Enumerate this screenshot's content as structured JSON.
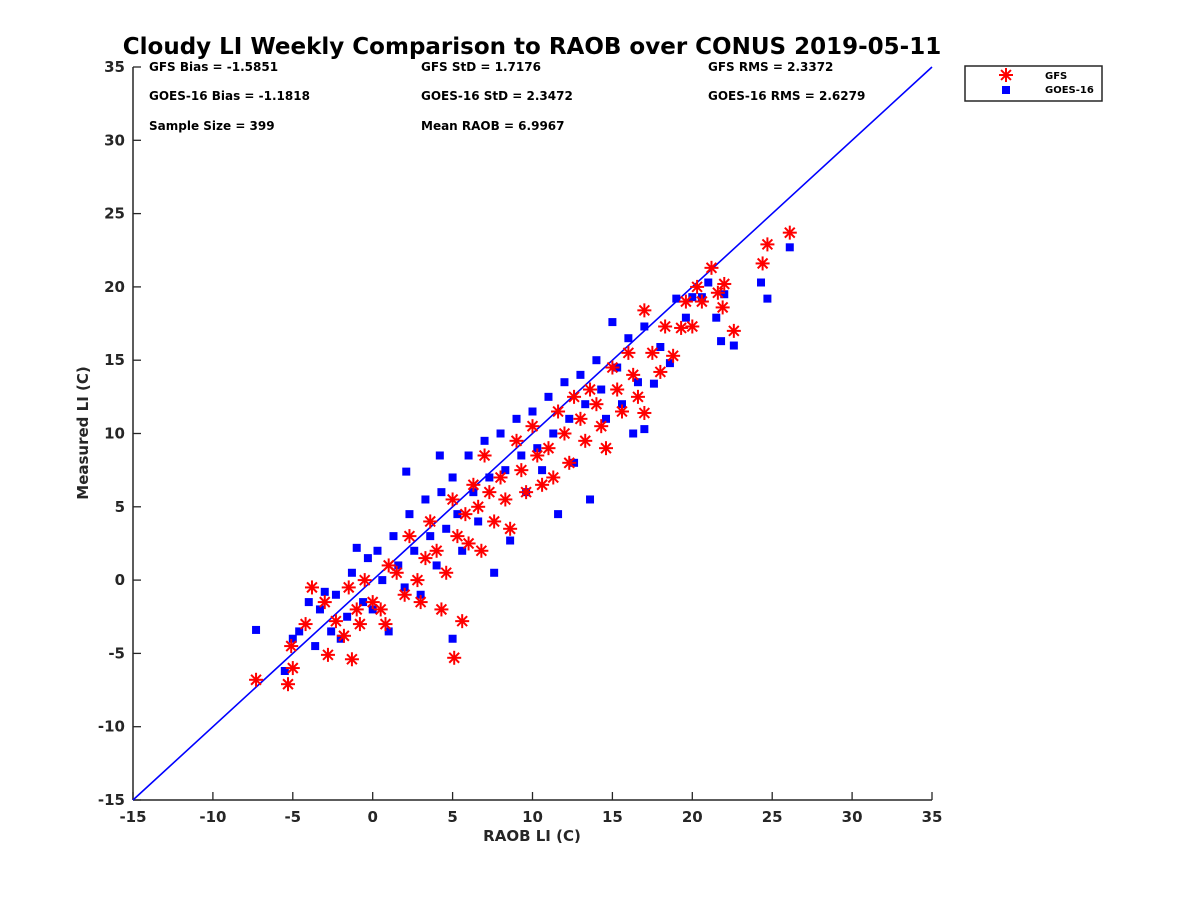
{
  "title": "Cloudy LI Weekly Comparison to RAOB over CONUS 2019-05-11",
  "stats": [
    [
      "GFS Bias = -1.5851",
      "GFS StD = 1.7176",
      "GFS RMS = 2.3372"
    ],
    [
      "GOES-16 Bias = -1.1818",
      "GOES-16 StD = 2.3472",
      "GOES-16 RMS = 2.6279"
    ],
    [
      "Sample Size = 399",
      "Mean RAOB = 6.9967",
      ""
    ]
  ],
  "colors": {
    "gfs": "#ff0000",
    "goes": "#0000ff",
    "line": "#0000ff",
    "axis": "#262626"
  },
  "chart_data": {
    "type": "scatter",
    "title": "Cloudy LI Weekly Comparison to RAOB over CONUS 2019-05-11",
    "xlabel": "RAOB LI (C)",
    "ylabel": "Measured LI (C)",
    "xlim": [
      -15,
      35
    ],
    "ylim": [
      -15,
      35
    ],
    "xticks": [
      -15,
      -10,
      -5,
      0,
      5,
      10,
      15,
      20,
      25,
      30,
      35
    ],
    "yticks": [
      -15,
      -10,
      -5,
      0,
      5,
      10,
      15,
      20,
      25,
      30,
      35
    ],
    "grid": false,
    "legend": "top-right outside",
    "reference_line": {
      "from": [
        -15,
        -15
      ],
      "to": [
        35,
        35
      ]
    },
    "series": [
      {
        "name": "GFS",
        "marker": "asterisk",
        "points": [
          [
            -7.3,
            -6.8
          ],
          [
            -5.3,
            -7.1
          ],
          [
            -5.1,
            -4.5
          ],
          [
            -5.0,
            -6.0
          ],
          [
            -4.2,
            -3.0
          ],
          [
            -3.8,
            -0.5
          ],
          [
            -3.0,
            -1.5
          ],
          [
            -2.8,
            -5.1
          ],
          [
            -2.3,
            -2.8
          ],
          [
            -1.8,
            -3.8
          ],
          [
            -1.5,
            -0.5
          ],
          [
            -1.3,
            -5.4
          ],
          [
            -1.0,
            -2.0
          ],
          [
            -0.8,
            -3.0
          ],
          [
            -0.5,
            0.0
          ],
          [
            0.0,
            -1.5
          ],
          [
            0.5,
            -2.0
          ],
          [
            0.8,
            -3.0
          ],
          [
            1.0,
            1.0
          ],
          [
            1.5,
            0.5
          ],
          [
            2.0,
            -1.0
          ],
          [
            2.3,
            3.0
          ],
          [
            2.8,
            0.0
          ],
          [
            3.0,
            -1.5
          ],
          [
            3.3,
            1.5
          ],
          [
            3.6,
            4.0
          ],
          [
            4.0,
            2.0
          ],
          [
            4.3,
            -2.0
          ],
          [
            4.6,
            0.5
          ],
          [
            5.0,
            5.5
          ],
          [
            5.1,
            -5.3
          ],
          [
            5.3,
            3.0
          ],
          [
            5.6,
            -2.8
          ],
          [
            5.8,
            4.5
          ],
          [
            6.0,
            2.5
          ],
          [
            6.3,
            6.5
          ],
          [
            6.6,
            5.0
          ],
          [
            6.8,
            2.0
          ],
          [
            7.0,
            8.5
          ],
          [
            7.3,
            6.0
          ],
          [
            7.6,
            4.0
          ],
          [
            8.0,
            7.0
          ],
          [
            8.3,
            5.5
          ],
          [
            8.6,
            3.5
          ],
          [
            9.0,
            9.5
          ],
          [
            9.3,
            7.5
          ],
          [
            9.6,
            6.0
          ],
          [
            10.0,
            10.5
          ],
          [
            10.3,
            8.5
          ],
          [
            10.6,
            6.5
          ],
          [
            11.0,
            9.0
          ],
          [
            11.3,
            7.0
          ],
          [
            11.6,
            11.5
          ],
          [
            12.0,
            10.0
          ],
          [
            12.3,
            8.0
          ],
          [
            12.6,
            12.5
          ],
          [
            13.0,
            11.0
          ],
          [
            13.3,
            9.5
          ],
          [
            13.6,
            13.0
          ],
          [
            14.0,
            12.0
          ],
          [
            14.3,
            10.5
          ],
          [
            14.6,
            9.0
          ],
          [
            15.0,
            14.5
          ],
          [
            15.3,
            13.0
          ],
          [
            15.6,
            11.5
          ],
          [
            16.0,
            15.5
          ],
          [
            16.3,
            14.0
          ],
          [
            16.6,
            12.5
          ],
          [
            17.0,
            18.4
          ],
          [
            17.0,
            11.4
          ],
          [
            17.5,
            15.5
          ],
          [
            18.0,
            14.2
          ],
          [
            18.3,
            17.3
          ],
          [
            18.8,
            15.3
          ],
          [
            19.3,
            17.2
          ],
          [
            19.6,
            19.0
          ],
          [
            20.0,
            17.3
          ],
          [
            20.3,
            20.0
          ],
          [
            20.6,
            19.0
          ],
          [
            21.2,
            21.3
          ],
          [
            21.6,
            19.6
          ],
          [
            21.9,
            18.6
          ],
          [
            22.0,
            20.2
          ],
          [
            22.6,
            17.0
          ],
          [
            24.4,
            21.6
          ],
          [
            24.7,
            22.9
          ],
          [
            26.1,
            23.7
          ]
        ]
      },
      {
        "name": "GOES-16",
        "marker": "square",
        "points": [
          [
            -7.3,
            -3.4
          ],
          [
            -5.5,
            -6.2
          ],
          [
            -5.0,
            -4.0
          ],
          [
            -4.6,
            -3.5
          ],
          [
            -4.0,
            -1.5
          ],
          [
            -3.6,
            -4.5
          ],
          [
            -3.3,
            -2.0
          ],
          [
            -3.0,
            -0.8
          ],
          [
            -2.6,
            -3.5
          ],
          [
            -2.3,
            -1.0
          ],
          [
            -2.0,
            -4.0
          ],
          [
            -1.6,
            -2.5
          ],
          [
            -1.3,
            0.5
          ],
          [
            -1.0,
            2.2
          ],
          [
            -0.6,
            -1.5
          ],
          [
            -0.3,
            1.5
          ],
          [
            0.0,
            -2.0
          ],
          [
            0.3,
            2.0
          ],
          [
            0.6,
            0.0
          ],
          [
            1.0,
            -3.5
          ],
          [
            1.3,
            3.0
          ],
          [
            1.6,
            1.0
          ],
          [
            2.0,
            -0.5
          ],
          [
            2.1,
            7.4
          ],
          [
            2.3,
            4.5
          ],
          [
            2.6,
            2.0
          ],
          [
            3.0,
            -1.0
          ],
          [
            3.3,
            5.5
          ],
          [
            3.6,
            3.0
          ],
          [
            4.0,
            1.0
          ],
          [
            4.2,
            8.5
          ],
          [
            4.3,
            6.0
          ],
          [
            4.6,
            3.5
          ],
          [
            5.0,
            -4.0
          ],
          [
            5.0,
            7.0
          ],
          [
            5.3,
            4.5
          ],
          [
            5.6,
            2.0
          ],
          [
            6.0,
            8.5
          ],
          [
            6.3,
            6.0
          ],
          [
            6.6,
            4.0
          ],
          [
            7.0,
            9.5
          ],
          [
            7.3,
            7.0
          ],
          [
            7.6,
            0.5
          ],
          [
            8.0,
            10.0
          ],
          [
            8.3,
            7.5
          ],
          [
            8.6,
            2.7
          ],
          [
            9.0,
            11.0
          ],
          [
            9.3,
            8.5
          ],
          [
            9.6,
            6.0
          ],
          [
            10.0,
            11.5
          ],
          [
            10.3,
            9.0
          ],
          [
            10.6,
            7.5
          ],
          [
            11.0,
            12.5
          ],
          [
            11.3,
            10.0
          ],
          [
            11.6,
            4.5
          ],
          [
            12.0,
            13.5
          ],
          [
            12.3,
            11.0
          ],
          [
            12.6,
            8.0
          ],
          [
            13.0,
            14.0
          ],
          [
            13.3,
            12.0
          ],
          [
            13.6,
            5.5
          ],
          [
            14.0,
            15.0
          ],
          [
            14.3,
            13.0
          ],
          [
            14.6,
            11.0
          ],
          [
            15.0,
            17.6
          ],
          [
            15.3,
            14.5
          ],
          [
            15.6,
            12.0
          ],
          [
            16.0,
            16.5
          ],
          [
            16.3,
            10.0
          ],
          [
            16.6,
            13.5
          ],
          [
            17.0,
            17.3
          ],
          [
            17.0,
            10.3
          ],
          [
            17.6,
            13.4
          ],
          [
            18.0,
            15.9
          ],
          [
            18.6,
            14.8
          ],
          [
            19.0,
            19.2
          ],
          [
            19.6,
            17.9
          ],
          [
            20.0,
            19.3
          ],
          [
            20.6,
            19.3
          ],
          [
            21.0,
            20.3
          ],
          [
            21.5,
            17.9
          ],
          [
            21.8,
            16.3
          ],
          [
            22.0,
            19.5
          ],
          [
            22.6,
            16.0
          ],
          [
            24.3,
            20.3
          ],
          [
            24.7,
            19.2
          ],
          [
            26.1,
            22.7
          ]
        ]
      }
    ]
  },
  "legend_items": [
    {
      "label": "GFS",
      "marker": "asterisk"
    },
    {
      "label": "GOES-16",
      "marker": "square"
    }
  ]
}
